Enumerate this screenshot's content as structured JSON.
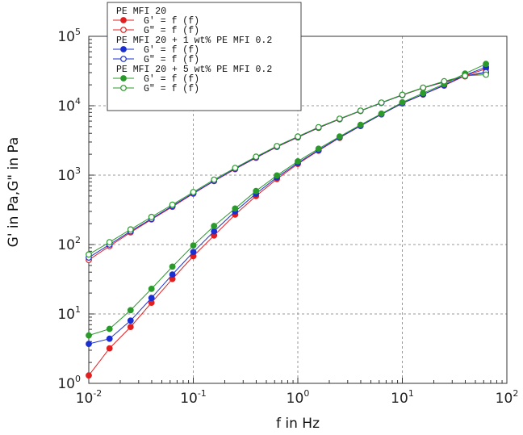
{
  "chart_data": {
    "type": "line",
    "xscale": "log",
    "yscale": "log",
    "xlim": [
      0.01,
      100
    ],
    "ylim": [
      1,
      100000
    ],
    "xlabel": "f in Hz",
    "ylabel": "G' in Pa,G\" in Pa",
    "grid": true,
    "legend_placement": "top-left",
    "x_ticks": [
      {
        "base": "10",
        "exp": "-2",
        "value": 0.01
      },
      {
        "base": "10",
        "exp": "-1",
        "value": 0.1
      },
      {
        "base": "10",
        "exp": "0",
        "value": 1
      },
      {
        "base": "10",
        "exp": "1",
        "value": 10
      },
      {
        "base": "10",
        "exp": "2",
        "value": 100
      }
    ],
    "y_ticks": [
      {
        "base": "10",
        "exp": "0",
        "value": 1
      },
      {
        "base": "10",
        "exp": "1",
        "value": 10
      },
      {
        "base": "10",
        "exp": "2",
        "value": 100
      },
      {
        "base": "10",
        "exp": "3",
        "value": 1000
      },
      {
        "base": "10",
        "exp": "4",
        "value": 10000
      },
      {
        "base": "10",
        "exp": "5",
        "value": 100000
      }
    ],
    "x": [
      0.01,
      0.0158,
      0.0251,
      0.0398,
      0.0631,
      0.1,
      0.158,
      0.251,
      0.398,
      0.631,
      1,
      1.58,
      2.51,
      3.98,
      6.31,
      10,
      15.8,
      25.1,
      39.8,
      63.1
    ],
    "legend_groups": [
      {
        "label": "PE MFI 20",
        "entries": [
          0,
          1
        ]
      },
      {
        "label": "PE MFI 20 + 1 wt% PE MFI 0.2",
        "entries": [
          2,
          3
        ]
      },
      {
        "label": "PE MFI 20 + 5 wt% PE MFI 0.2",
        "entries": [
          4,
          5
        ]
      }
    ],
    "series": [
      {
        "name": "G' = f (f)",
        "color": "#e02020",
        "marker": "filled",
        "values": [
          1.3,
          3.2,
          6.5,
          14.5,
          32,
          68,
          135,
          270,
          500,
          880,
          1450,
          2250,
          3450,
          5100,
          7500,
          10800,
          14500,
          19500,
          27000,
          34000
        ]
      },
      {
        "name": "G\" = f (f)",
        "color": "#e02020",
        "marker": "open",
        "values": [
          60,
          95,
          150,
          230,
          350,
          540,
          820,
          1220,
          1780,
          2550,
          3500,
          4800,
          6400,
          8400,
          11000,
          14200,
          18000,
          22000,
          26500,
          30000
        ]
      },
      {
        "name": "G' = f (f)",
        "color": "#1a2fd0",
        "marker": "filled",
        "values": [
          3.7,
          4.4,
          8,
          17,
          37,
          78,
          155,
          300,
          540,
          930,
          1500,
          2300,
          3500,
          5150,
          7550,
          10900,
          14600,
          19800,
          27500,
          36000
        ]
      },
      {
        "name": "G\" = f (f)",
        "color": "#1a2fd0",
        "marker": "open",
        "values": [
          65,
          100,
          155,
          235,
          360,
          550,
          830,
          1240,
          1800,
          2580,
          3550,
          4850,
          6450,
          8450,
          11000,
          14300,
          18100,
          22200,
          26800,
          30500
        ]
      },
      {
        "name": "G' = f (f)",
        "color": "#2a9a2a",
        "marker": "filled",
        "values": [
          4.9,
          6.1,
          11.3,
          23,
          48,
          97,
          185,
          330,
          590,
          990,
          1580,
          2400,
          3600,
          5300,
          7700,
          11200,
          15200,
          20500,
          29000,
          40000
        ]
      },
      {
        "name": "G\" = f (f)",
        "color": "#2a9a2a",
        "marker": "open",
        "values": [
          72,
          108,
          165,
          250,
          375,
          570,
          860,
          1270,
          1840,
          2620,
          3600,
          4900,
          6500,
          8500,
          11100,
          14400,
          18200,
          22500,
          27000,
          28000
        ]
      }
    ]
  }
}
